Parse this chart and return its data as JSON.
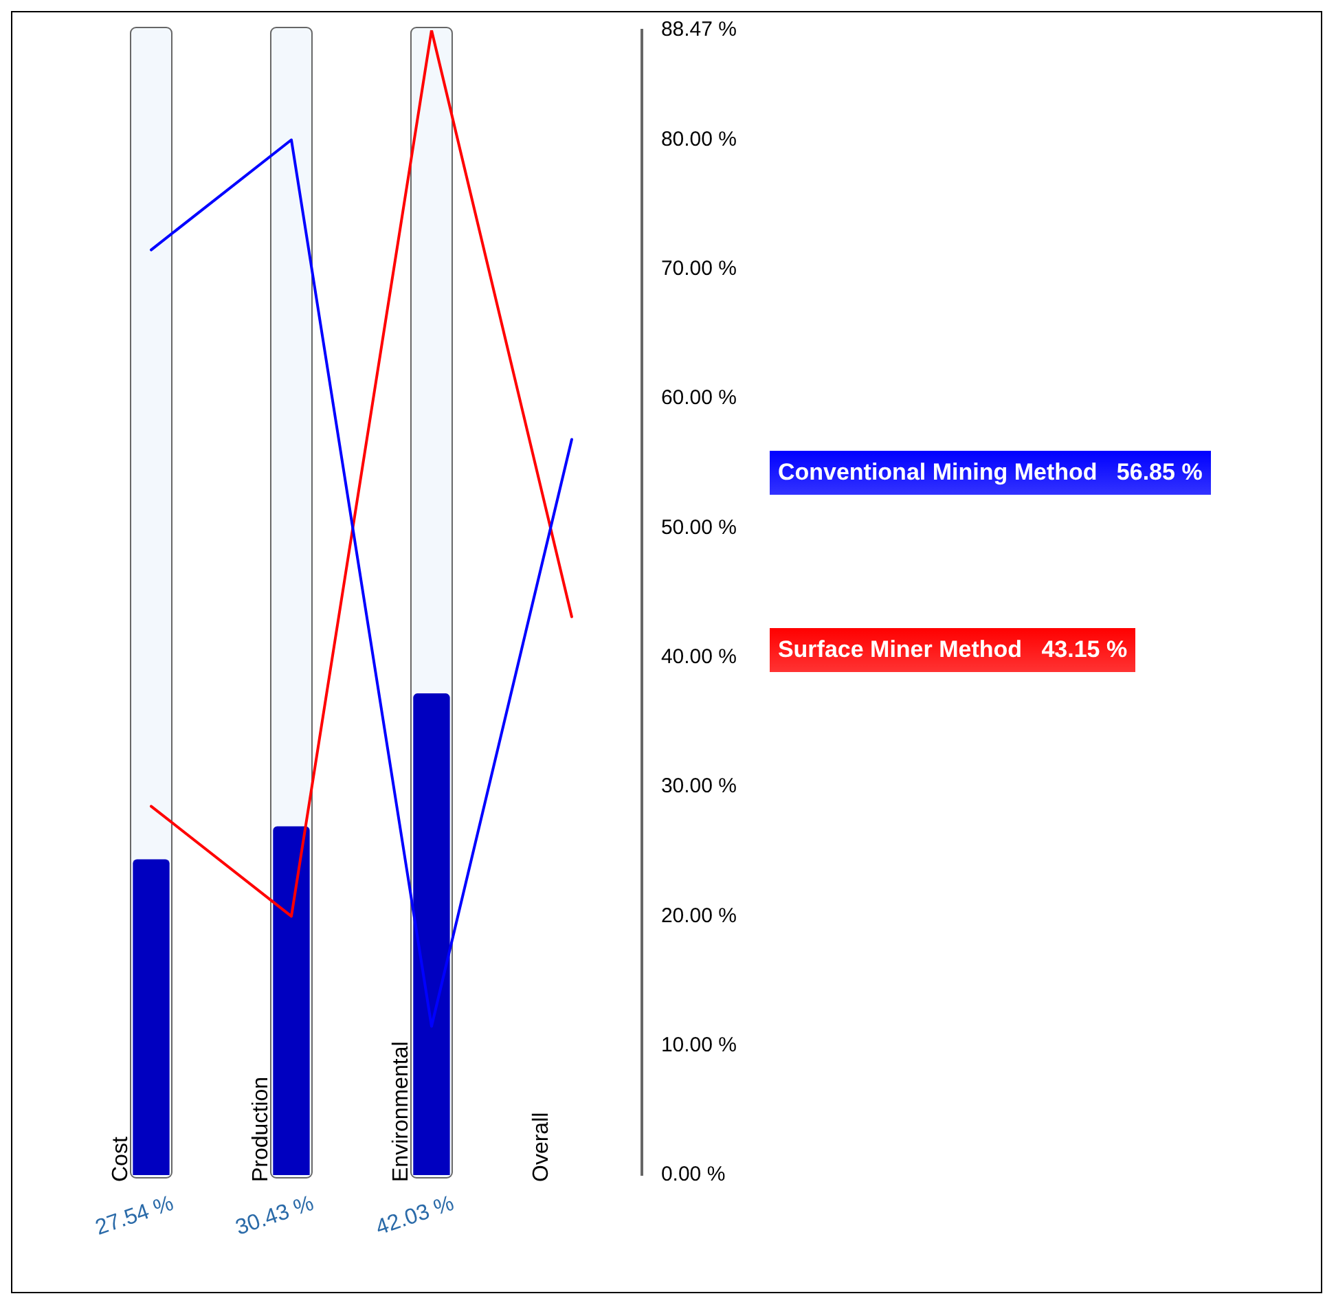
{
  "chart_data": {
    "type": "bar",
    "categories": [
      "Cost",
      "Production",
      "Environmental",
      "Overall"
    ],
    "ylim": [
      0,
      88.47
    ],
    "yticks": [
      {
        "value": 0,
        "label": "0.00 %"
      },
      {
        "value": 10,
        "label": "10.00 %"
      },
      {
        "value": 20,
        "label": "20.00 %"
      },
      {
        "value": 30,
        "label": "30.00 %"
      },
      {
        "value": 40,
        "label": "40.00 %"
      },
      {
        "value": 50,
        "label": "50.00 %"
      },
      {
        "value": 60,
        "label": "60.00 %"
      },
      {
        "value": 70,
        "label": "70.00 %"
      },
      {
        "value": 80,
        "label": "80.00 %"
      },
      {
        "value": 88.47,
        "label": "88.47 %"
      }
    ],
    "y2lim": [
      0,
      100
    ],
    "legend": false,
    "grid": false,
    "marker": "none",
    "series": [
      {
        "color": "#0000c0",
        "axis": "y2",
        "values": [
          27.54,
          30.43,
          42.03,
          null
        ],
        "value_labels": [
          "27.54 %",
          "30.43 %",
          "42.03 %",
          null
        ]
      },
      {
        "type": "line",
        "name": "Conventional Mining Method",
        "color": "#0000ff",
        "values": [
          71.5,
          80.0,
          11.5,
          56.85
        ],
        "value_labels": [
          null,
          null,
          null,
          "56.85 %"
        ]
      },
      {
        "type": "line",
        "name": "Surface Miner Method",
        "color": "#ff0000",
        "values": [
          28.5,
          20.0,
          88.47,
          43.15
        ],
        "value_labels": [
          null,
          null,
          null,
          "43.15 %"
        ]
      }
    ]
  }
}
